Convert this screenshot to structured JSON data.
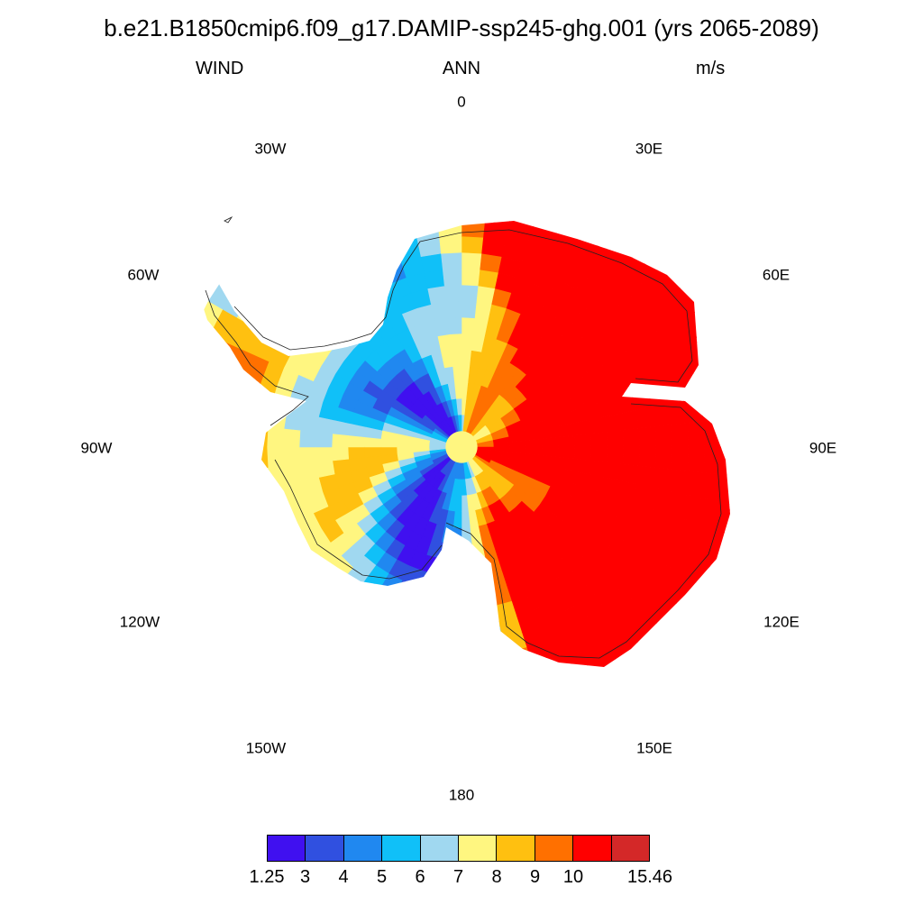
{
  "title": "b.e21.B1850cmip6.f09_g17.DAMIP-ssp245-ghg.001 (yrs 2065-2089)",
  "variable": "WIND",
  "season": "ANN",
  "units": "m/s",
  "longitude_labels": {
    "lon_0": "0",
    "lon_30e": "30E",
    "lon_60e": "60E",
    "lon_90e": "90E",
    "lon_120e": "120E",
    "lon_150e": "150E",
    "lon_180": "180",
    "lon_150w": "150W",
    "lon_120w": "120W",
    "lon_90w": "90W",
    "lon_60w": "60W",
    "lon_30w": "30W"
  },
  "colorbar": {
    "colors": [
      "#4010f0",
      "#3050e0",
      "#2088f0",
      "#10c0f8",
      "#a0d8f0",
      "#fff680",
      "#ffc010",
      "#ff7000",
      "#ff0000",
      "#d42828"
    ],
    "labels": [
      "1.25",
      "3",
      "4",
      "5",
      "6",
      "7",
      "8",
      "9",
      "10",
      "15.46"
    ]
  },
  "map_data": {
    "projection": "south-polar-stereographic",
    "sector_speeds_m_s": [
      {
        "lon": 0,
        "speed": 9
      },
      {
        "lon": 30,
        "speed": 15.46
      },
      {
        "lon": 60,
        "speed": 15.46
      },
      {
        "lon": 90,
        "speed": 15.46
      },
      {
        "lon": 120,
        "speed": 15.46
      },
      {
        "lon": 150,
        "speed": 15.46
      },
      {
        "lon": 180,
        "speed": 6
      },
      {
        "lon": -150,
        "speed": 5
      },
      {
        "lon": -120,
        "speed": 8
      },
      {
        "lon": -90,
        "speed": 10
      },
      {
        "lon": -60,
        "speed": 7
      },
      {
        "lon": -30,
        "speed": 5
      }
    ]
  }
}
